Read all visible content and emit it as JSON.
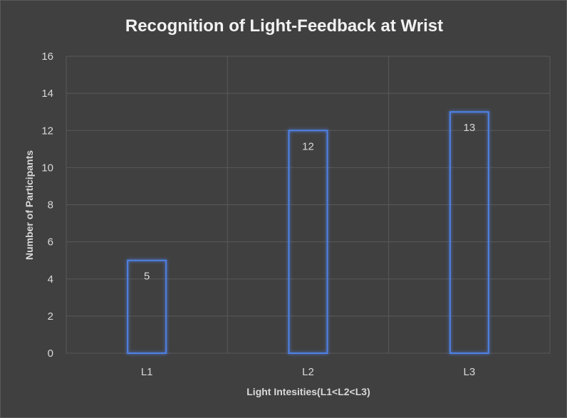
{
  "chart_data": {
    "type": "bar",
    "title": "Recognition of Light-Feedback at Wrist",
    "xlabel": "Light Intesities(L1<L2<L3)",
    "ylabel": "Number of Participants",
    "categories": [
      "L1",
      "L2",
      "L3"
    ],
    "values": [
      5,
      12,
      13
    ],
    "data_labels": [
      "5",
      "12",
      "13"
    ],
    "ylim": [
      0,
      16
    ],
    "yticks": [
      0,
      2,
      4,
      6,
      8,
      10,
      12,
      14,
      16
    ],
    "ytick_labels": [
      "0",
      "2",
      "4",
      "6",
      "8",
      "10",
      "12",
      "14",
      "16"
    ],
    "grid": true,
    "legend": "none",
    "colors": {
      "background": "#404040",
      "bar_outline": "#4f81e6",
      "bar_glow": "#2e5fd0",
      "gridline": "#595959",
      "text": "#d9d9d9",
      "title": "#f2f2f2"
    }
  }
}
